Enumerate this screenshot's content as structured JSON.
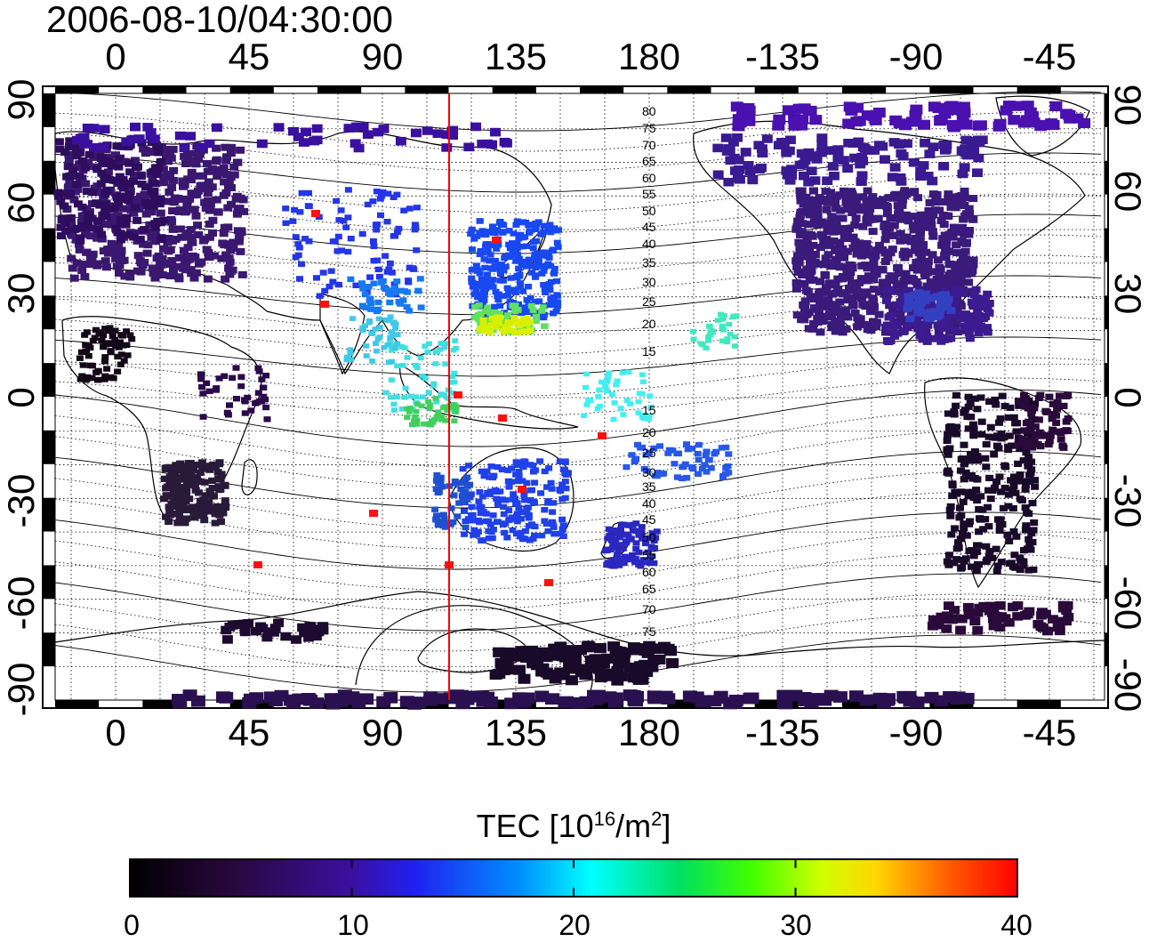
{
  "title": "2006-08-10/04:30:00",
  "lon_ticks": [
    "0",
    "45",
    "90",
    "135",
    "180",
    "-135",
    "-90",
    "-45"
  ],
  "lat_ticks": [
    "90",
    "60",
    "30",
    "0",
    "-30",
    "-60",
    "-90"
  ],
  "dip_labels_north": [
    "80",
    "75",
    "70",
    "65",
    "60",
    "55",
    "50",
    "45",
    "40",
    "35",
    "30",
    "25",
    "20",
    "15"
  ],
  "dip_labels_south": [
    "15",
    "20",
    "25",
    "30",
    "35",
    "40",
    "45",
    "50",
    "55",
    "60",
    "65",
    "70",
    "75"
  ],
  "colorbar": {
    "title": "TEC  [10",
    "exponent": "16",
    "unit_mid": "/m",
    "unit_exp": "2",
    "unit_end": "]",
    "ticks": [
      "0",
      "10",
      "20",
      "30",
      "40"
    ],
    "range": [
      0,
      40
    ]
  },
  "subsolar_longitude": 112.5,
  "colors": {
    "marker_line": "#ff0000",
    "land_outline": "#000000",
    "grid": "#000000"
  }
}
